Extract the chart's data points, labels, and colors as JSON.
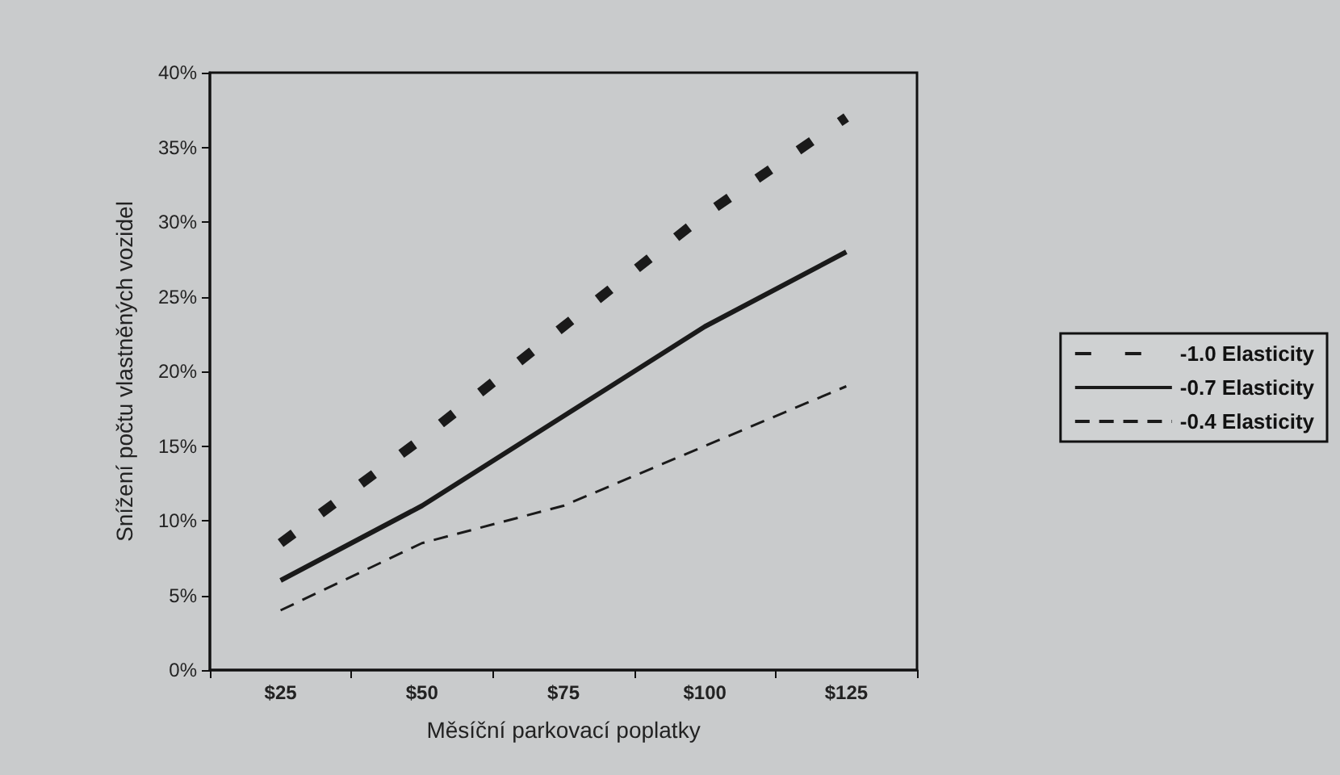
{
  "chart_data": {
    "type": "line",
    "xlabel": "Měsíční parkovací poplatky",
    "ylabel": "Snížení počtu vlastněných vozidel",
    "categories": [
      "$25",
      "$50",
      "$75",
      "$100",
      "$125"
    ],
    "series": [
      {
        "name": "-1.0 Elasticity",
        "color": "#1a1a1a",
        "line_style": "dashed",
        "values": [
          8.5,
          15.5,
          23,
          30.5,
          37
        ]
      },
      {
        "name": "-0.7 Elasticity",
        "color": "#1a1a1a",
        "line_style": "solid",
        "values": [
          6,
          11,
          17,
          23,
          28
        ]
      },
      {
        "name": "-0.4 Elasticity",
        "color": "#1a1a1a",
        "line_style": "dashed",
        "values": [
          4,
          8.5,
          11,
          15,
          19
        ]
      }
    ],
    "ylim": [
      0,
      40
    ],
    "yticks": [
      {
        "value": 0,
        "label": "0%"
      },
      {
        "value": 5,
        "label": "5%"
      },
      {
        "value": 10,
        "label": "10%"
      },
      {
        "value": 15,
        "label": "15%"
      },
      {
        "value": 20,
        "label": "20%"
      },
      {
        "value": 25,
        "label": "25%"
      },
      {
        "value": 30,
        "label": "30%"
      },
      {
        "value": 35,
        "label": "35%"
      },
      {
        "value": 40,
        "label": "40%"
      }
    ],
    "grid": false,
    "legend": "right",
    "marker": "none"
  }
}
